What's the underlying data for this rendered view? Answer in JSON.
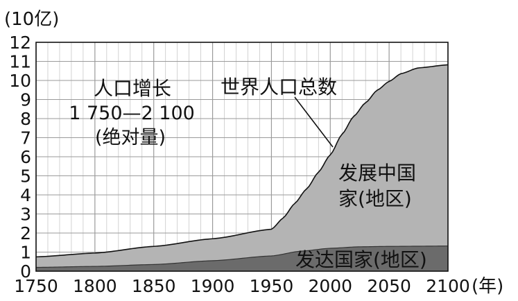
{
  "chart_data": {
    "type": "area",
    "title_lines": [
      "人口增长",
      "1 750—2 100",
      "(绝对量)"
    ],
    "ylabel": "(10亿)",
    "xlabel": "(年)",
    "x_ticks": [
      1750,
      1800,
      1850,
      1900,
      1950,
      2000,
      2050,
      2100
    ],
    "y_ticks": [
      0,
      1,
      2,
      3,
      4,
      5,
      6,
      7,
      8,
      9,
      10,
      11,
      12
    ],
    "xlim": [
      1750,
      2100
    ],
    "ylim": [
      0,
      12
    ],
    "grid": true,
    "series": [
      {
        "name": "发达国家(地区)",
        "color": "#6b6b6b",
        "x": [
          1750,
          1800,
          1850,
          1900,
          1950,
          1975,
          2000,
          2025,
          2050,
          2075,
          2100
        ],
        "y": [
          0.2,
          0.25,
          0.35,
          0.55,
          0.8,
          1.05,
          1.2,
          1.28,
          1.3,
          1.31,
          1.32
        ]
      },
      {
        "name": "发展中国家(地区)",
        "color": "#b4b4b4",
        "x": [
          1750,
          1800,
          1850,
          1900,
          1950,
          1960,
          1970,
          1980,
          1990,
          2000,
          2010,
          2020,
          2030,
          2040,
          2050,
          2060,
          2075,
          2100
        ],
        "y": [
          0.55,
          0.7,
          0.95,
          1.15,
          1.4,
          1.9,
          2.55,
          3.25,
          4.05,
          4.9,
          5.95,
          6.85,
          7.55,
          8.2,
          8.65,
          9.05,
          9.35,
          9.5
        ]
      }
    ],
    "total_label": "世界人口总数",
    "annotation_developing": [
      "发展中国",
      "家(地区)"
    ],
    "annotation_developed": "发达国家(地区)"
  }
}
